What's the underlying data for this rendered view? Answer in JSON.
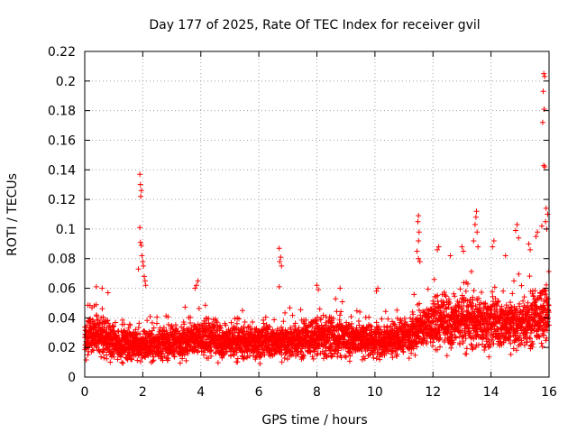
{
  "chart_data": {
    "type": "scatter",
    "title": "Day 177 of 2025, Rate Of TEC Index for receiver gvil",
    "xlabel": "GPS time / hours",
    "ylabel": "ROTI / TECUs",
    "xlim": [
      0,
      16
    ],
    "ylim": [
      0,
      0.22
    ],
    "xticks": [
      0,
      2,
      4,
      6,
      8,
      10,
      12,
      14,
      16
    ],
    "xtick_labels": [
      "0",
      "2",
      "4",
      "6",
      "8",
      "10",
      "12",
      "14",
      "16"
    ],
    "yticks": [
      0,
      0.02,
      0.04,
      0.06,
      0.08,
      0.1,
      0.12,
      0.14,
      0.16,
      0.18,
      0.2,
      0.22
    ],
    "ytick_labels": [
      "0",
      "0.02",
      "0.04",
      "0.06",
      "0.08",
      "0.1",
      "0.12",
      "0.14",
      "0.16",
      "0.18",
      "0.2",
      "0.22"
    ],
    "grid": true,
    "marker": "+",
    "color": "#ff0000",
    "series": [
      {
        "name": "ROTI",
        "baseline_envelope": [
          {
            "x": 0.0,
            "low": 0.008,
            "high": 0.045
          },
          {
            "x": 0.5,
            "low": 0.008,
            "high": 0.05
          },
          {
            "x": 1.0,
            "low": 0.007,
            "high": 0.04
          },
          {
            "x": 2.0,
            "low": 0.007,
            "high": 0.035
          },
          {
            "x": 3.0,
            "low": 0.007,
            "high": 0.04
          },
          {
            "x": 4.0,
            "low": 0.008,
            "high": 0.045
          },
          {
            "x": 5.0,
            "low": 0.008,
            "high": 0.04
          },
          {
            "x": 6.0,
            "low": 0.008,
            "high": 0.04
          },
          {
            "x": 7.0,
            "low": 0.008,
            "high": 0.04
          },
          {
            "x": 8.0,
            "low": 0.008,
            "high": 0.045
          },
          {
            "x": 9.0,
            "low": 0.008,
            "high": 0.045
          },
          {
            "x": 10.0,
            "low": 0.008,
            "high": 0.04
          },
          {
            "x": 11.0,
            "low": 0.01,
            "high": 0.045
          },
          {
            "x": 12.0,
            "low": 0.012,
            "high": 0.06
          },
          {
            "x": 13.0,
            "low": 0.012,
            "high": 0.065
          },
          {
            "x": 14.0,
            "low": 0.012,
            "high": 0.06
          },
          {
            "x": 15.0,
            "low": 0.012,
            "high": 0.06
          },
          {
            "x": 16.0,
            "low": 0.015,
            "high": 0.07
          }
        ],
        "notable_points": [
          {
            "x": 1.9,
            "y": 0.137
          },
          {
            "x": 1.92,
            "y": 0.13
          },
          {
            "x": 1.95,
            "y": 0.126
          },
          {
            "x": 1.93,
            "y": 0.122
          },
          {
            "x": 1.9,
            "y": 0.101
          },
          {
            "x": 1.92,
            "y": 0.091
          },
          {
            "x": 1.95,
            "y": 0.089
          },
          {
            "x": 1.97,
            "y": 0.082
          },
          {
            "x": 2.0,
            "y": 0.078
          },
          {
            "x": 2.02,
            "y": 0.075
          },
          {
            "x": 1.85,
            "y": 0.073
          },
          {
            "x": 2.05,
            "y": 0.068
          },
          {
            "x": 2.08,
            "y": 0.065
          },
          {
            "x": 2.1,
            "y": 0.062
          },
          {
            "x": 0.4,
            "y": 0.061
          },
          {
            "x": 0.6,
            "y": 0.06
          },
          {
            "x": 0.8,
            "y": 0.057
          },
          {
            "x": 3.9,
            "y": 0.065
          },
          {
            "x": 3.85,
            "y": 0.062
          },
          {
            "x": 3.8,
            "y": 0.06
          },
          {
            "x": 6.7,
            "y": 0.087
          },
          {
            "x": 6.75,
            "y": 0.081
          },
          {
            "x": 6.72,
            "y": 0.078
          },
          {
            "x": 6.78,
            "y": 0.075
          },
          {
            "x": 6.7,
            "y": 0.061
          },
          {
            "x": 8.0,
            "y": 0.062
          },
          {
            "x": 8.05,
            "y": 0.059
          },
          {
            "x": 8.8,
            "y": 0.06
          },
          {
            "x": 10.1,
            "y": 0.06
          },
          {
            "x": 10.05,
            "y": 0.058
          },
          {
            "x": 11.5,
            "y": 0.109
          },
          {
            "x": 11.48,
            "y": 0.105
          },
          {
            "x": 11.52,
            "y": 0.098
          },
          {
            "x": 11.5,
            "y": 0.092
          },
          {
            "x": 11.45,
            "y": 0.085
          },
          {
            "x": 11.5,
            "y": 0.08
          },
          {
            "x": 11.55,
            "y": 0.078
          },
          {
            "x": 12.2,
            "y": 0.088
          },
          {
            "x": 12.15,
            "y": 0.086
          },
          {
            "x": 12.6,
            "y": 0.082
          },
          {
            "x": 13.0,
            "y": 0.088
          },
          {
            "x": 13.05,
            "y": 0.085
          },
          {
            "x": 13.5,
            "y": 0.112
          },
          {
            "x": 13.48,
            "y": 0.108
          },
          {
            "x": 13.45,
            "y": 0.103
          },
          {
            "x": 13.52,
            "y": 0.098
          },
          {
            "x": 13.4,
            "y": 0.092
          },
          {
            "x": 13.55,
            "y": 0.088
          },
          {
            "x": 14.1,
            "y": 0.092
          },
          {
            "x": 14.05,
            "y": 0.088
          },
          {
            "x": 14.5,
            "y": 0.082
          },
          {
            "x": 14.9,
            "y": 0.103
          },
          {
            "x": 14.85,
            "y": 0.099
          },
          {
            "x": 14.95,
            "y": 0.094
          },
          {
            "x": 15.3,
            "y": 0.09
          },
          {
            "x": 15.35,
            "y": 0.086
          },
          {
            "x": 15.6,
            "y": 0.098
          },
          {
            "x": 15.55,
            "y": 0.095
          },
          {
            "x": 15.82,
            "y": 0.205
          },
          {
            "x": 15.85,
            "y": 0.203
          },
          {
            "x": 15.8,
            "y": 0.193
          },
          {
            "x": 15.83,
            "y": 0.181
          },
          {
            "x": 15.78,
            "y": 0.172
          },
          {
            "x": 15.82,
            "y": 0.143
          },
          {
            "x": 15.85,
            "y": 0.142
          },
          {
            "x": 15.9,
            "y": 0.114
          },
          {
            "x": 15.95,
            "y": 0.11
          },
          {
            "x": 15.88,
            "y": 0.105
          },
          {
            "x": 15.92,
            "y": 0.1
          },
          {
            "x": 15.75,
            "y": 0.102
          }
        ]
      }
    ]
  }
}
